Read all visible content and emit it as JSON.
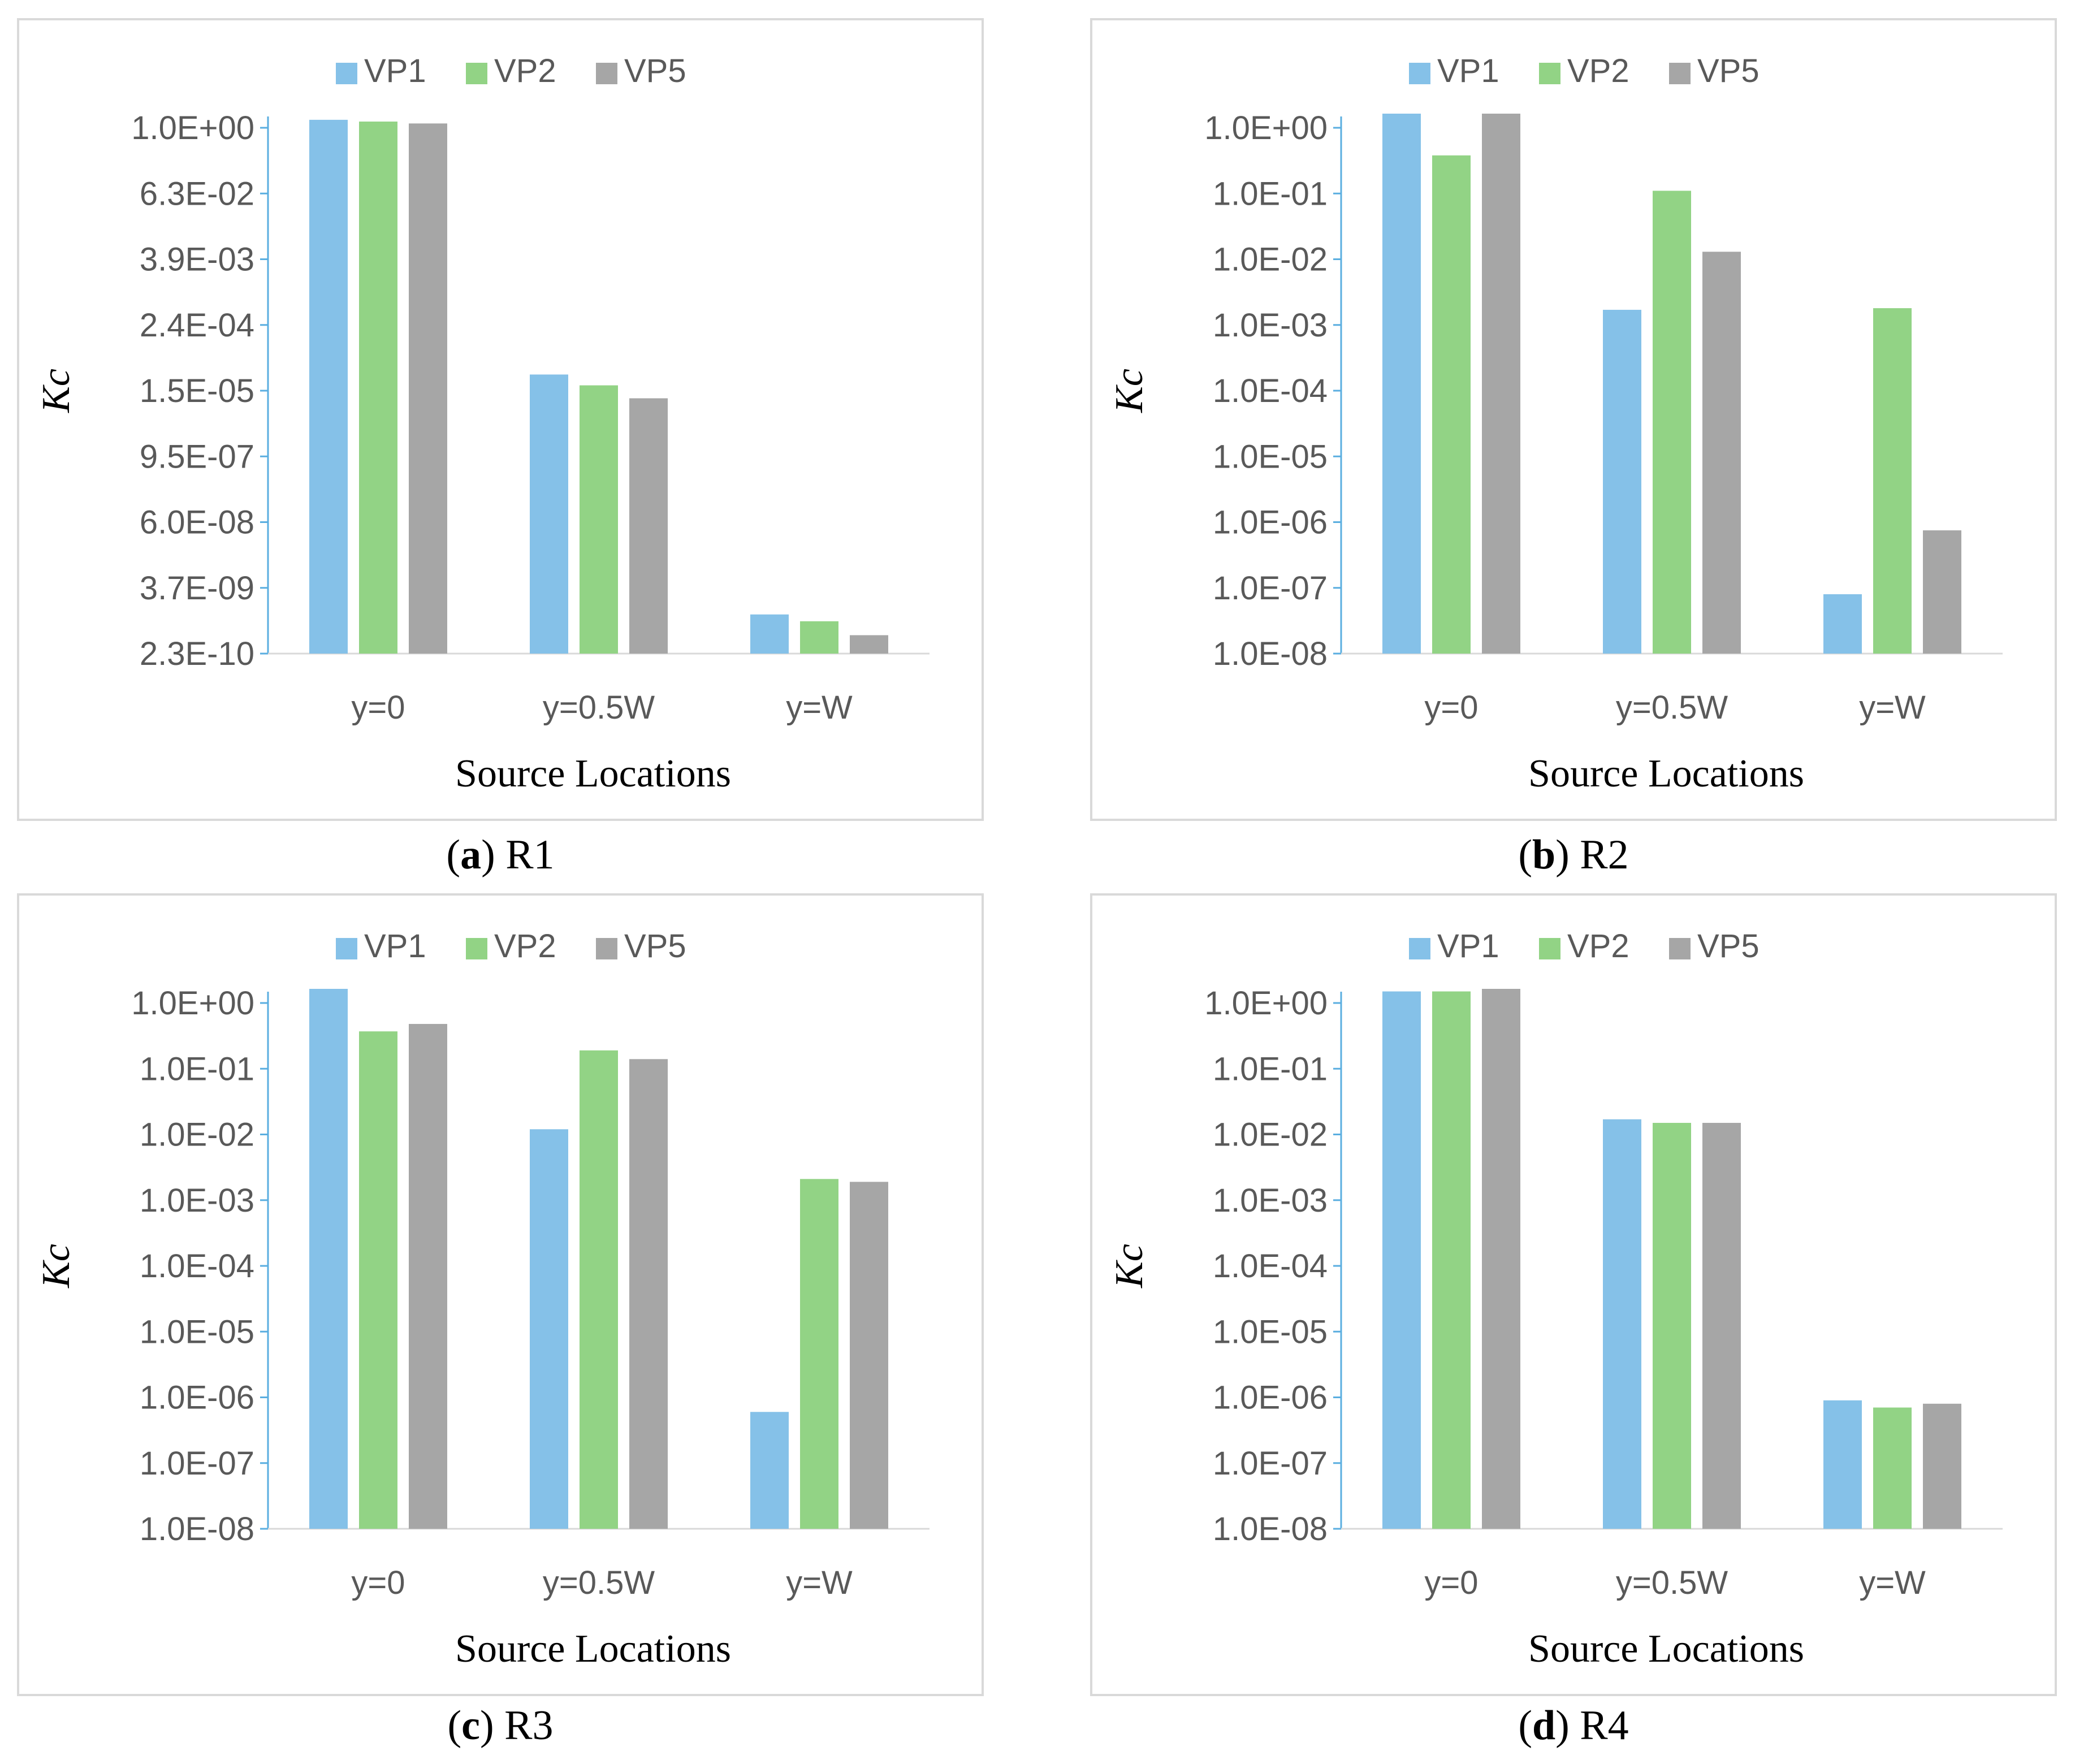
{
  "legend_colors": {
    "VP1": "#85c1e8",
    "VP2": "#92d385",
    "VP5": "#a6a6a6"
  },
  "captions": [
    {
      "letter": "a",
      "label": "R1"
    },
    {
      "letter": "b",
      "label": "R2"
    },
    {
      "letter": "c",
      "label": "R3"
    },
    {
      "letter": "d",
      "label": "R4"
    }
  ],
  "chart_data": [
    {
      "type": "bar",
      "scale": "log",
      "categories": [
        "y=0",
        "y=0.5W",
        "y=W"
      ],
      "xlabel": "Source Locations",
      "ylabel": "Kc",
      "yticks": [
        "1.0E+00",
        "6.3E-02",
        "3.9E-03",
        "2.4E-04",
        "1.5E-05",
        "9.5E-07",
        "6.0E-08",
        "3.7E-09",
        "2.3E-10"
      ],
      "ylim": [
        2.3e-10,
        1.0
      ],
      "legend": "top",
      "series": [
        {
          "name": "VP1",
          "values": [
            1.4,
            3e-05,
            1.2e-09
          ]
        },
        {
          "name": "VP2",
          "values": [
            1.3,
            1.9e-05,
            9e-10
          ]
        },
        {
          "name": "VP5",
          "values": [
            1.2,
            1.1e-05,
            5e-10
          ]
        }
      ]
    },
    {
      "type": "bar",
      "scale": "log",
      "categories": [
        "y=0",
        "y=0.5W",
        "y=W"
      ],
      "xlabel": "Source Locations",
      "ylabel": "Kc",
      "yticks": [
        "1.0E+00",
        "1.0E-01",
        "1.0E-02",
        "1.0E-03",
        "1.0E-04",
        "1.0E-05",
        "1.0E-06",
        "1.0E-07",
        "1.0E-08"
      ],
      "ylim": [
        1e-08,
        1.0
      ],
      "legend": "top",
      "series": [
        {
          "name": "VP1",
          "values": [
            1.7,
            0.0017,
            8e-08
          ]
        },
        {
          "name": "VP2",
          "values": [
            0.38,
            0.11,
            0.0018
          ]
        },
        {
          "name": "VP5",
          "values": [
            1.8,
            0.013,
            7.5e-07
          ]
        }
      ]
    },
    {
      "type": "bar",
      "scale": "log",
      "categories": [
        "y=0",
        "y=0.5W",
        "y=W"
      ],
      "xlabel": "Source Locations",
      "ylabel": "Kc",
      "yticks": [
        "1.0E+00",
        "1.0E-01",
        "1.0E-02",
        "1.0E-03",
        "1.0E-04",
        "1.0E-05",
        "1.0E-06",
        "1.0E-07",
        "1.0E-08"
      ],
      "ylim": [
        1e-08,
        1.0
      ],
      "legend": "top",
      "series": [
        {
          "name": "VP1",
          "values": [
            1.7,
            0.012,
            6e-07
          ]
        },
        {
          "name": "VP2",
          "values": [
            0.37,
            0.19,
            0.0021
          ]
        },
        {
          "name": "VP5",
          "values": [
            0.48,
            0.14,
            0.0019
          ]
        }
      ]
    },
    {
      "type": "bar",
      "scale": "log",
      "categories": [
        "y=0",
        "y=0.5W",
        "y=W"
      ],
      "xlabel": "Source Locations",
      "ylabel": "Kc",
      "yticks": [
        "1.0E+00",
        "1.0E-01",
        "1.0E-02",
        "1.0E-03",
        "1.0E-04",
        "1.0E-05",
        "1.0E-06",
        "1.0E-07",
        "1.0E-08"
      ],
      "ylim": [
        1e-08,
        1.0
      ],
      "legend": "top",
      "series": [
        {
          "name": "VP1",
          "values": [
            1.5,
            0.017,
            9e-07
          ]
        },
        {
          "name": "VP2",
          "values": [
            1.5,
            0.015,
            7e-07
          ]
        },
        {
          "name": "VP5",
          "values": [
            1.7,
            0.015,
            8e-07
          ]
        }
      ]
    }
  ]
}
